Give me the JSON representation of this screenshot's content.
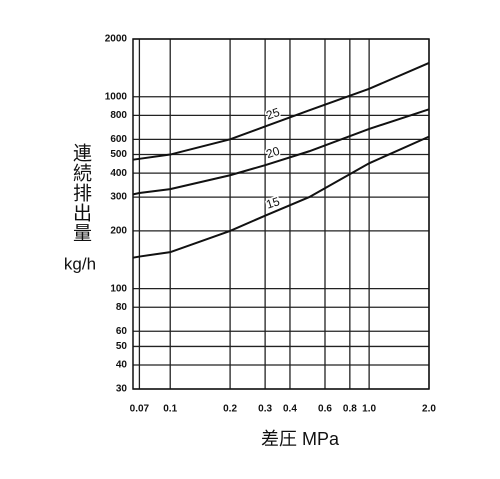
{
  "chart_data": {
    "type": "line",
    "x_label": "差圧 MPa",
    "y_label": "連続排出量",
    "y_unit": "kg/h",
    "log_x": true,
    "log_y": true,
    "grid": true,
    "x": [
      0.065,
      0.07,
      0.1,
      0.2,
      0.3,
      0.5,
      1.0,
      2.0
    ],
    "series": [
      {
        "name": "25",
        "color": "#111111",
        "values": [
          470,
          475,
          500,
          600,
          700,
          850,
          1100,
          1500
        ]
      },
      {
        "name": "20",
        "color": "#111111",
        "values": [
          310,
          315,
          330,
          390,
          440,
          520,
          680,
          860
        ]
      },
      {
        "name": "15",
        "color": "#111111",
        "values": [
          145,
          147,
          155,
          200,
          240,
          300,
          450,
          620
        ]
      }
    ],
    "xlim": [
      0.065,
      2.0
    ],
    "xticks": [
      0.07,
      0.1,
      0.2,
      0.3,
      0.4,
      0.6,
      0.8,
      {
        "value": 1.0,
        "label": "1.0"
      },
      {
        "value": 2.0,
        "label": "2.0"
      }
    ],
    "ylim": [
      30,
      2000
    ],
    "yticks": [
      30,
      40,
      50,
      60,
      80,
      100,
      200,
      300,
      400,
      500,
      600,
      800,
      1000,
      2000
    ]
  }
}
